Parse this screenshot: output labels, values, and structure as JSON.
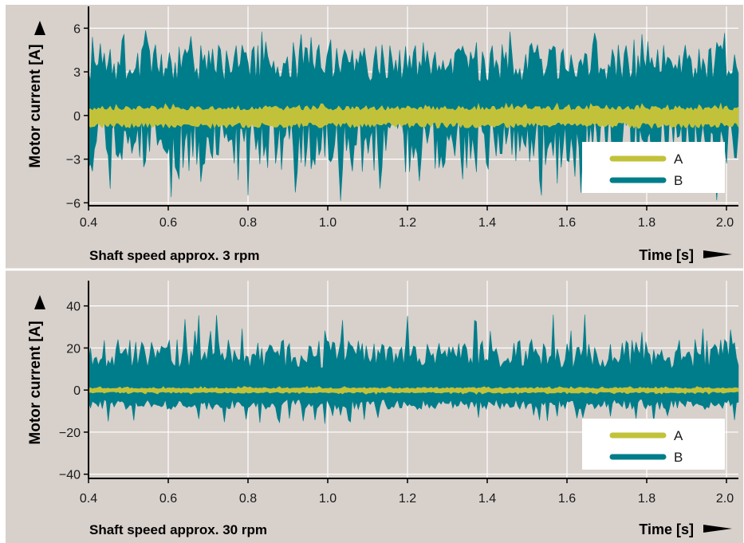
{
  "chart_data": [
    {
      "type": "area",
      "ylabel": "Motor current [A]",
      "xlabel": "Time [s]",
      "caption": "Shaft speed approx. 3 rpm",
      "xlim": [
        0.4,
        2.03
      ],
      "ylim": [
        -6.2,
        7.5
      ],
      "x_ticks": [
        0.4,
        0.6,
        0.8,
        1.0,
        1.2,
        1.4,
        1.6,
        1.8,
        2.0
      ],
      "x_tick_labels": [
        "0.4",
        "0.6",
        "0.8",
        "1.0",
        "1.2",
        "1.4",
        "1.6",
        "1.8",
        "2.0"
      ],
      "y_ticks": [
        -6,
        -3,
        0,
        3,
        6
      ],
      "y_tick_labels": [
        "−6",
        "−3",
        "0",
        "3",
        "6"
      ],
      "grid": true,
      "legend_position": "bottom-right",
      "series": [
        {
          "name": "B",
          "color": "#007d8a",
          "envelope": {
            "min_mean": -1.3,
            "min_var": 4.0,
            "min_extreme": -6.0,
            "max_mean": 3.2,
            "max_var": 2.6,
            "max_extreme": 5.9,
            "seed": 7
          }
        },
        {
          "name": "A",
          "color": "#c2c23a",
          "envelope": {
            "min_mean": -0.6,
            "min_var": 0.4,
            "min_extreme": -0.9,
            "max_mean": 0.45,
            "max_var": 0.35,
            "max_extreme": 0.85,
            "seed": 3
          }
        }
      ]
    },
    {
      "type": "area",
      "ylabel": "Motor current [A]",
      "xlabel": "Time [s]",
      "caption": "Shaft speed approx. 30 rpm",
      "xlim": [
        0.4,
        2.03
      ],
      "ylim": [
        -42,
        52
      ],
      "x_ticks": [
        0.4,
        0.6,
        0.8,
        1.0,
        1.2,
        1.4,
        1.6,
        1.8,
        2.0
      ],
      "x_tick_labels": [
        "0.4",
        "0.6",
        "0.8",
        "1.0",
        "1.2",
        "1.4",
        "1.6",
        "1.8",
        "2.0"
      ],
      "y_ticks": [
        -40,
        -20,
        0,
        20,
        40
      ],
      "y_tick_labels": [
        "−40",
        "−20",
        "0",
        "20",
        "40"
      ],
      "grid": true,
      "legend_position": "bottom-right",
      "series": [
        {
          "name": "B",
          "color": "#007d8a",
          "envelope": {
            "min_mean": -6.0,
            "min_var": 5.0,
            "min_extreme": -16.0,
            "max_mean": 15.0,
            "max_var": 14.0,
            "max_extreme": 36.0,
            "seed": 11
          }
        },
        {
          "name": "A",
          "color": "#c2c23a",
          "envelope": {
            "min_mean": -1.0,
            "min_var": 0.8,
            "min_extreme": -2.0,
            "max_mean": 0.8,
            "max_var": 0.8,
            "max_extreme": 1.8,
            "seed": 5
          }
        }
      ]
    }
  ]
}
